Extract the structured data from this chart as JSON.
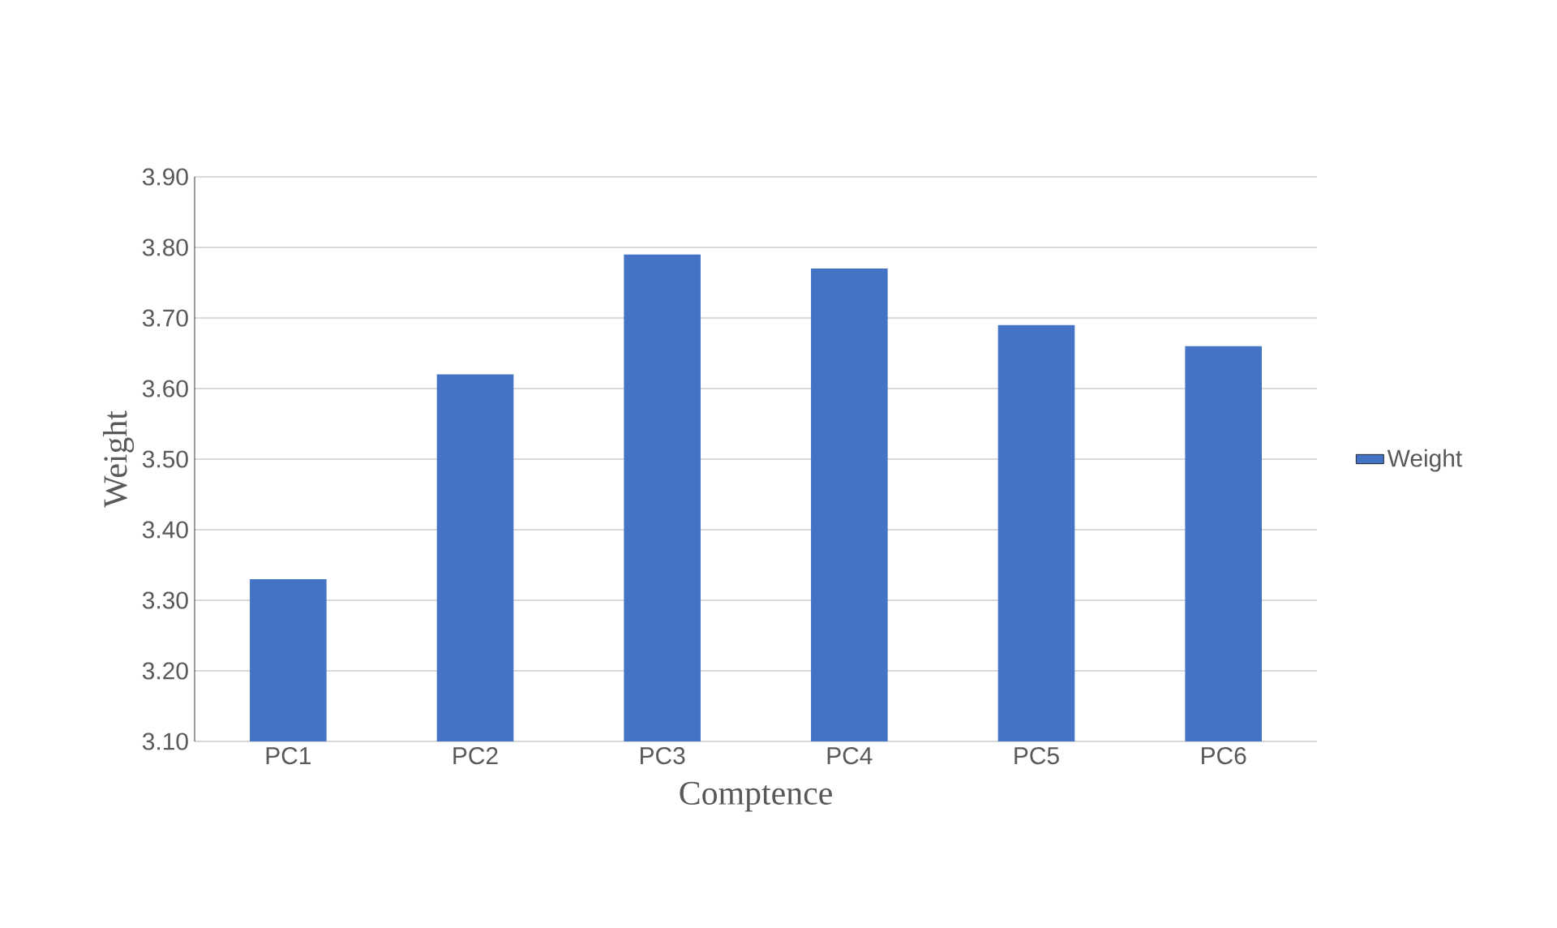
{
  "chart_data": {
    "type": "bar",
    "xlabel": "Comptence",
    "ylabel": "Weight",
    "categories": [
      "PC1",
      "PC2",
      "PC3",
      "PC4",
      "PC5",
      "PC6"
    ],
    "series": [
      {
        "name": "Weight",
        "color": "#4472c4",
        "values": [
          3.33,
          3.62,
          3.79,
          3.77,
          3.69,
          3.66
        ]
      }
    ],
    "ylim": [
      3.1,
      3.9
    ],
    "yticks": [
      {
        "value": 3.1,
        "label": "3.10"
      },
      {
        "value": 3.2,
        "label": "3.20"
      },
      {
        "value": 3.3,
        "label": "3.30"
      },
      {
        "value": 3.4,
        "label": "3.40"
      },
      {
        "value": 3.5,
        "label": "3.50"
      },
      {
        "value": 3.6,
        "label": "3.60"
      },
      {
        "value": 3.7,
        "label": "3.70"
      },
      {
        "value": 3.8,
        "label": "3.80"
      },
      {
        "value": 3.9,
        "label": "3.90"
      }
    ],
    "grid": "y",
    "legend": "right"
  }
}
